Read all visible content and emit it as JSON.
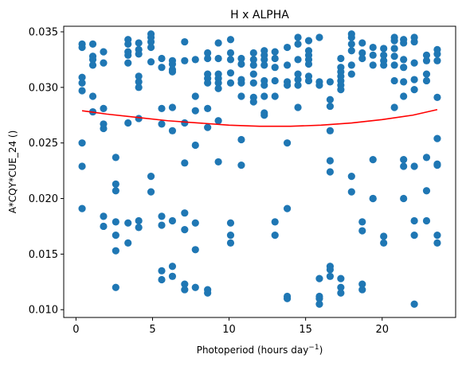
{
  "chart_data": {
    "type": "scatter",
    "title": "H x ALPHA",
    "xlabel": "Photoperiod (hours day",
    "xlabel_sup": "−1",
    "xlabel_suffix": ")",
    "ylabel": "A*CQY*CUE_24 ()",
    "xlim": [
      -0.8,
      24.8
    ],
    "ylim": [
      0.0093,
      0.0355
    ],
    "xticks": [
      0,
      5,
      10,
      15,
      20
    ],
    "xtick_labels": [
      "0",
      "5",
      "10",
      "15",
      "20"
    ],
    "yticks": [
      0.01,
      0.015,
      0.02,
      0.025,
      0.03,
      0.035
    ],
    "ytick_labels": [
      "0.010",
      "0.015",
      "0.020",
      "0.025",
      "0.030",
      "0.035"
    ],
    "grid": false,
    "colors": {
      "points": "#1f77b4",
      "fit": "#ff0000",
      "axes": "#000000"
    },
    "fit_line": {
      "name": "",
      "x": [
        0.4,
        2,
        4,
        6,
        8,
        10,
        12,
        14,
        16,
        18,
        20,
        22,
        23.6
      ],
      "y": [
        0.0279,
        0.0276,
        0.0273,
        0.027,
        0.0268,
        0.0266,
        0.0265,
        0.0265,
        0.0266,
        0.0268,
        0.0271,
        0.0275,
        0.028
      ]
    },
    "series": [
      {
        "name": "",
        "points": [
          [
            0.4,
            0.0339
          ],
          [
            0.4,
            0.0336
          ],
          [
            0.4,
            0.0309
          ],
          [
            0.4,
            0.0304
          ],
          [
            0.4,
            0.0297
          ],
          [
            0.4,
            0.025
          ],
          [
            0.4,
            0.0229
          ],
          [
            0.4,
            0.0191
          ],
          [
            1.1,
            0.0339
          ],
          [
            1.1,
            0.0328
          ],
          [
            1.1,
            0.0325
          ],
          [
            1.1,
            0.032
          ],
          [
            1.1,
            0.0292
          ],
          [
            1.1,
            0.0278
          ],
          [
            1.8,
            0.0332
          ],
          [
            1.8,
            0.0322
          ],
          [
            1.8,
            0.0281
          ],
          [
            1.8,
            0.0267
          ],
          [
            1.8,
            0.0263
          ],
          [
            1.8,
            0.0184
          ],
          [
            1.8,
            0.0175
          ],
          [
            2.6,
            0.0237
          ],
          [
            2.6,
            0.0213
          ],
          [
            2.6,
            0.0207
          ],
          [
            2.6,
            0.0179
          ],
          [
            2.6,
            0.0167
          ],
          [
            2.6,
            0.0153
          ],
          [
            2.6,
            0.012
          ],
          [
            3.4,
            0.0343
          ],
          [
            3.4,
            0.0339
          ],
          [
            3.4,
            0.0332
          ],
          [
            3.4,
            0.0329
          ],
          [
            3.4,
            0.0322
          ],
          [
            3.4,
            0.0268
          ],
          [
            3.4,
            0.0178
          ],
          [
            3.4,
            0.016
          ],
          [
            4.1,
            0.034
          ],
          [
            4.1,
            0.0334
          ],
          [
            4.1,
            0.033
          ],
          [
            4.1,
            0.031
          ],
          [
            4.1,
            0.0305
          ],
          [
            4.1,
            0.03
          ],
          [
            4.1,
            0.0272
          ],
          [
            4.1,
            0.018
          ],
          [
            4.1,
            0.0174
          ],
          [
            4.9,
            0.0348
          ],
          [
            4.9,
            0.0345
          ],
          [
            4.9,
            0.0341
          ],
          [
            4.9,
            0.0336
          ],
          [
            4.9,
            0.0323
          ],
          [
            4.9,
            0.022
          ],
          [
            4.9,
            0.0206
          ],
          [
            5.6,
            0.0326
          ],
          [
            5.6,
            0.0318
          ],
          [
            5.6,
            0.0281
          ],
          [
            5.6,
            0.0267
          ],
          [
            5.6,
            0.0184
          ],
          [
            5.6,
            0.0176
          ],
          [
            5.6,
            0.0135
          ],
          [
            5.6,
            0.0127
          ],
          [
            6.3,
            0.0324
          ],
          [
            6.3,
            0.0321
          ],
          [
            6.3,
            0.0316
          ],
          [
            6.3,
            0.0314
          ],
          [
            6.3,
            0.0282
          ],
          [
            6.3,
            0.0261
          ],
          [
            6.3,
            0.018
          ],
          [
            6.3,
            0.0139
          ],
          [
            6.3,
            0.013
          ],
          [
            7.1,
            0.0341
          ],
          [
            7.1,
            0.0324
          ],
          [
            7.1,
            0.0268
          ],
          [
            7.1,
            0.0232
          ],
          [
            7.1,
            0.0187
          ],
          [
            7.1,
            0.0172
          ],
          [
            7.1,
            0.0123
          ],
          [
            7.1,
            0.0118
          ],
          [
            7.8,
            0.0325
          ],
          [
            7.8,
            0.0292
          ],
          [
            7.8,
            0.0279
          ],
          [
            7.8,
            0.0248
          ],
          [
            7.8,
            0.0178
          ],
          [
            7.8,
            0.0154
          ],
          [
            7.8,
            0.012
          ],
          [
            8.6,
            0.0331
          ],
          [
            8.6,
            0.0326
          ],
          [
            8.6,
            0.0312
          ],
          [
            8.6,
            0.0308
          ],
          [
            8.6,
            0.0304
          ],
          [
            8.6,
            0.0281
          ],
          [
            8.6,
            0.0264
          ],
          [
            8.6,
            0.0118
          ],
          [
            8.6,
            0.0115
          ],
          [
            9.3,
            0.034
          ],
          [
            9.3,
            0.0326
          ],
          [
            9.3,
            0.0312
          ],
          [
            9.3,
            0.0308
          ],
          [
            9.3,
            0.0304
          ],
          [
            9.3,
            0.0299
          ],
          [
            9.3,
            0.027
          ],
          [
            9.3,
            0.0233
          ],
          [
            10.1,
            0.0343
          ],
          [
            10.1,
            0.0331
          ],
          [
            10.1,
            0.0325
          ],
          [
            10.1,
            0.0313
          ],
          [
            10.1,
            0.0304
          ],
          [
            10.1,
            0.0178
          ],
          [
            10.1,
            0.0167
          ],
          [
            10.1,
            0.016
          ],
          [
            10.8,
            0.0326
          ],
          [
            10.8,
            0.0321
          ],
          [
            10.8,
            0.0307
          ],
          [
            10.8,
            0.0304
          ],
          [
            10.8,
            0.0292
          ],
          [
            10.8,
            0.0253
          ],
          [
            10.8,
            0.023
          ],
          [
            11.6,
            0.0331
          ],
          [
            11.6,
            0.0325
          ],
          [
            11.6,
            0.032
          ],
          [
            11.6,
            0.0312
          ],
          [
            11.6,
            0.0304
          ],
          [
            11.6,
            0.0291
          ],
          [
            11.6,
            0.0287
          ],
          [
            12.3,
            0.0333
          ],
          [
            12.3,
            0.0329
          ],
          [
            12.3,
            0.0325
          ],
          [
            12.3,
            0.032
          ],
          [
            12.3,
            0.0306
          ],
          [
            12.3,
            0.0302
          ],
          [
            12.3,
            0.0292
          ],
          [
            12.3,
            0.0277
          ],
          [
            12.3,
            0.0275
          ],
          [
            13.0,
            0.0332
          ],
          [
            13.0,
            0.0326
          ],
          [
            13.0,
            0.0318
          ],
          [
            13.0,
            0.0306
          ],
          [
            13.0,
            0.0292
          ],
          [
            13.0,
            0.0179
          ],
          [
            13.0,
            0.0167
          ],
          [
            13.8,
            0.0336
          ],
          [
            13.8,
            0.032
          ],
          [
            13.8,
            0.0305
          ],
          [
            13.8,
            0.0302
          ],
          [
            13.8,
            0.025
          ],
          [
            13.8,
            0.0191
          ],
          [
            13.8,
            0.0112
          ],
          [
            13.8,
            0.011
          ],
          [
            14.5,
            0.0345
          ],
          [
            14.5,
            0.0339
          ],
          [
            14.5,
            0.0325
          ],
          [
            14.5,
            0.0312
          ],
          [
            14.5,
            0.0307
          ],
          [
            14.5,
            0.0302
          ],
          [
            14.5,
            0.0282
          ],
          [
            15.2,
            0.0342
          ],
          [
            15.2,
            0.0333
          ],
          [
            15.2,
            0.0329
          ],
          [
            15.2,
            0.0325
          ],
          [
            15.2,
            0.0321
          ],
          [
            15.2,
            0.031
          ],
          [
            15.2,
            0.0306
          ],
          [
            15.9,
            0.0345
          ],
          [
            15.9,
            0.0305
          ],
          [
            15.9,
            0.0302
          ],
          [
            15.9,
            0.0128
          ],
          [
            15.9,
            0.0112
          ],
          [
            15.9,
            0.011
          ],
          [
            15.9,
            0.0105
          ],
          [
            16.6,
            0.0305
          ],
          [
            16.6,
            0.0289
          ],
          [
            16.6,
            0.0283
          ],
          [
            16.6,
            0.0261
          ],
          [
            16.6,
            0.0234
          ],
          [
            16.6,
            0.0224
          ],
          [
            16.6,
            0.0139
          ],
          [
            16.6,
            0.0136
          ],
          [
            16.6,
            0.013
          ],
          [
            17.3,
            0.0326
          ],
          [
            17.3,
            0.0318
          ],
          [
            17.3,
            0.0314
          ],
          [
            17.3,
            0.031
          ],
          [
            17.3,
            0.0306
          ],
          [
            17.3,
            0.0302
          ],
          [
            17.3,
            0.0298
          ],
          [
            17.3,
            0.0128
          ],
          [
            17.3,
            0.012
          ],
          [
            17.3,
            0.0115
          ],
          [
            18.0,
            0.0348
          ],
          [
            18.0,
            0.0345
          ],
          [
            18.0,
            0.0339
          ],
          [
            18.0,
            0.0333
          ],
          [
            18.0,
            0.032
          ],
          [
            18.0,
            0.0312
          ],
          [
            18.0,
            0.022
          ],
          [
            18.0,
            0.0206
          ],
          [
            18.7,
            0.034
          ],
          [
            18.7,
            0.0331
          ],
          [
            18.7,
            0.0326
          ],
          [
            18.7,
            0.0179
          ],
          [
            18.7,
            0.0171
          ],
          [
            18.7,
            0.0123
          ],
          [
            18.7,
            0.0118
          ],
          [
            19.4,
            0.0336
          ],
          [
            19.4,
            0.0329
          ],
          [
            19.4,
            0.032
          ],
          [
            19.4,
            0.0235
          ],
          [
            19.4,
            0.02
          ],
          [
            19.4,
            0.02
          ],
          [
            20.1,
            0.0335
          ],
          [
            20.1,
            0.0329
          ],
          [
            20.1,
            0.0324
          ],
          [
            20.1,
            0.032
          ],
          [
            20.1,
            0.0166
          ],
          [
            20.1,
            0.016
          ],
          [
            20.8,
            0.0345
          ],
          [
            20.8,
            0.0342
          ],
          [
            20.8,
            0.0335
          ],
          [
            20.8,
            0.0328
          ],
          [
            20.8,
            0.032
          ],
          [
            20.8,
            0.0306
          ],
          [
            20.8,
            0.0282
          ],
          [
            21.4,
            0.0343
          ],
          [
            21.4,
            0.034
          ],
          [
            21.4,
            0.0325
          ],
          [
            21.4,
            0.0318
          ],
          [
            21.4,
            0.0305
          ],
          [
            21.4,
            0.0292
          ],
          [
            21.4,
            0.0235
          ],
          [
            21.4,
            0.0229
          ],
          [
            21.4,
            0.02
          ],
          [
            22.1,
            0.0345
          ],
          [
            22.1,
            0.0341
          ],
          [
            22.1,
            0.0322
          ],
          [
            22.1,
            0.0307
          ],
          [
            22.1,
            0.0298
          ],
          [
            22.1,
            0.0229
          ],
          [
            22.1,
            0.018
          ],
          [
            22.1,
            0.0167
          ],
          [
            22.1,
            0.0105
          ],
          [
            22.9,
            0.0329
          ],
          [
            22.9,
            0.0324
          ],
          [
            22.9,
            0.0312
          ],
          [
            22.9,
            0.0306
          ],
          [
            22.9,
            0.0237
          ],
          [
            22.9,
            0.0207
          ],
          [
            22.9,
            0.018
          ],
          [
            23.6,
            0.0334
          ],
          [
            23.6,
            0.033
          ],
          [
            23.6,
            0.0324
          ],
          [
            23.6,
            0.0291
          ],
          [
            23.6,
            0.0254
          ],
          [
            23.6,
            0.0231
          ],
          [
            23.6,
            0.023
          ],
          [
            23.6,
            0.0167
          ],
          [
            23.6,
            0.016
          ]
        ]
      }
    ]
  }
}
